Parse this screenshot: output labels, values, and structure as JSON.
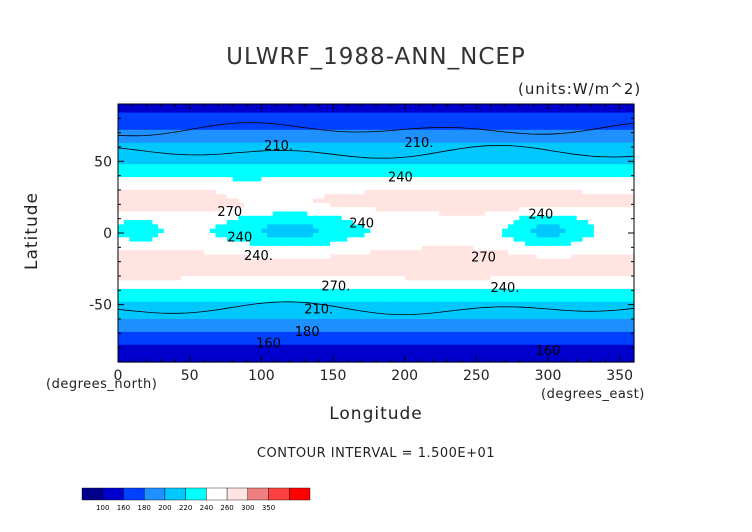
{
  "chart_data": {
    "type": "heatmap",
    "title": "ULWRF_1988-ANN_NCEP",
    "units_label": "(units:W/m^2)",
    "xlabel": "Longitude",
    "ylabel": "Latitude",
    "x_unit_label": "(degrees_east)",
    "y_unit_label": "(degrees_north)",
    "xlim": [
      0,
      360
    ],
    "ylim": [
      -90,
      90
    ],
    "x_ticks": [
      "0",
      "50",
      "100",
      "150",
      "200",
      "250",
      "300",
      "350"
    ],
    "y_ticks": [
      "50",
      "0",
      "-50"
    ],
    "contour_interval_text": "CONTOUR INTERVAL = 1.500E+01",
    "contour_labels": [
      "210.",
      "210.",
      "240",
      "270",
      "240",
      "240",
      "240.",
      "270.",
      "270",
      "240",
      "240.",
      "210.",
      "180",
      "160",
      "160"
    ],
    "colorbar": {
      "levels": [
        "100",
        "160",
        "180",
        "200",
        "220",
        "240",
        "260",
        "300",
        "350"
      ],
      "colors": [
        "#00008b",
        "#0000cd",
        "#0040ff",
        "#1e90ff",
        "#00c8ff",
        "#00ffff",
        "#ffffff",
        "#ffe4e1",
        "#f08080",
        "#ff4040",
        "#ff0000"
      ]
    },
    "zonal_profile": [
      {
        "lat": 90,
        "value": 150
      },
      {
        "lat": 80,
        "value": 165
      },
      {
        "lat": 70,
        "value": 185
      },
      {
        "lat": 60,
        "value": 205
      },
      {
        "lat": 50,
        "value": 218
      },
      {
        "lat": 40,
        "value": 238
      },
      {
        "lat": 30,
        "value": 258
      },
      {
        "lat": 20,
        "value": 265
      },
      {
        "lat": 10,
        "value": 250
      },
      {
        "lat": 0,
        "value": 245
      },
      {
        "lat": -10,
        "value": 255
      },
      {
        "lat": -20,
        "value": 268
      },
      {
        "lat": -30,
        "value": 262
      },
      {
        "lat": -40,
        "value": 240
      },
      {
        "lat": -50,
        "value": 215
      },
      {
        "lat": -60,
        "value": 198
      },
      {
        "lat": -70,
        "value": 178
      },
      {
        "lat": -80,
        "value": 155
      },
      {
        "lat": -90,
        "value": 140
      }
    ]
  }
}
